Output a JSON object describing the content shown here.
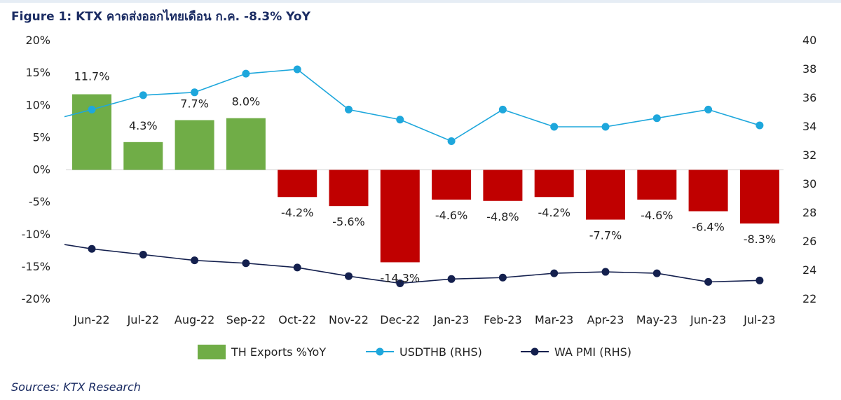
{
  "title": "Figure 1: KTX คาดส่งออกไทยเดือน ก.ค. -8.3% YoY",
  "source": "Sources: KTX Research",
  "chart_data": {
    "type": "bar+line",
    "categories": [
      "Jun-22",
      "Jul-22",
      "Aug-22",
      "Sep-22",
      "Oct-22",
      "Nov-22",
      "Dec-22",
      "Jan-23",
      "Feb-23",
      "Mar-23",
      "Apr-23",
      "May-23",
      "Jun-23",
      "Jul-23"
    ],
    "left_axis": {
      "min": -20,
      "max": 20,
      "ticks": [
        "20%",
        "15%",
        "10%",
        "5%",
        "0%",
        "-5%",
        "-10%",
        "-15%",
        "-20%"
      ]
    },
    "right_axis": {
      "min": 22,
      "max": 40,
      "ticks": [
        "40",
        "38",
        "36",
        "34",
        "32",
        "30",
        "28",
        "26",
        "24",
        "22"
      ]
    },
    "series": [
      {
        "name": "TH Exports %YoY",
        "type": "bar",
        "axis": "left",
        "values": [
          11.7,
          4.3,
          7.7,
          8.0,
          -4.2,
          -5.6,
          -14.3,
          -4.6,
          -4.8,
          -4.2,
          -7.7,
          -4.6,
          -6.4,
          -8.3
        ],
        "labels": [
          "11.7%",
          "4.3%",
          "7.7%",
          "8.0%",
          "-4.2%",
          "-5.6%",
          "-14.3%",
          "-4.6%",
          "-4.8%",
          "-4.2%",
          "-7.7%",
          "-4.6%",
          "-6.4%",
          "-8.3%"
        ],
        "pos_color": "#70ad47",
        "neg_color": "#c00000"
      },
      {
        "name": "USDTHB (RHS)",
        "type": "line",
        "axis": "right",
        "color": "#1ea7dc",
        "lead_in": 34.7,
        "values": [
          35.2,
          36.2,
          36.4,
          37.7,
          38.0,
          35.2,
          34.5,
          33.0,
          35.2,
          34.0,
          34.0,
          34.6,
          35.2,
          34.1
        ]
      },
      {
        "name": "WA PMI (RHS)",
        "type": "line",
        "axis": "right",
        "color": "#14204e",
        "lead_in": 25.8,
        "values": [
          25.5,
          25.1,
          24.7,
          24.5,
          24.2,
          23.6,
          23.1,
          23.4,
          23.5,
          23.8,
          23.9,
          23.8,
          23.2,
          23.3
        ]
      }
    ]
  }
}
